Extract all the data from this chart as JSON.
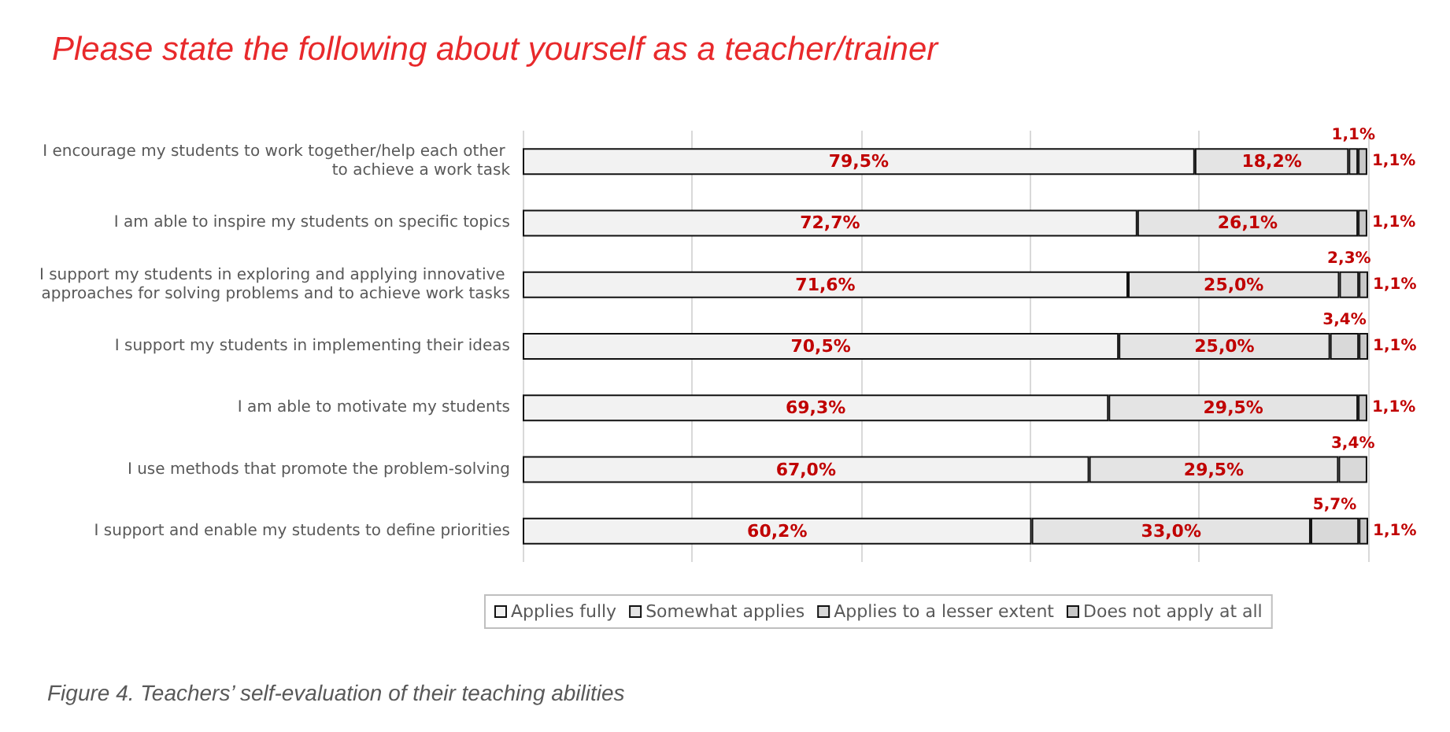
{
  "chart_data": {
    "type": "bar",
    "orientation": "horizontal",
    "stacked": true,
    "title": "Please state the following about yourself as a teacher/trainer",
    "categories": [
      "I encourage my students to work together/help each other to achieve a work task",
      "I am able to inspire my students on specific topics",
      "I support my students in exploring and applying innovative approaches for solving problems and to achieve work tasks",
      "I support my students in implementing their ideas",
      "I am able to motivate my students",
      "I use methods that promote the problem-solving",
      "I support and enable my students to define priorities"
    ],
    "series": [
      {
        "name": "Applies fully",
        "color": "#f2f2f2",
        "values": [
          79.5,
          72.7,
          71.6,
          70.5,
          69.3,
          67.0,
          60.2
        ],
        "value_labels": [
          "79,5%",
          "72,7%",
          "71,6%",
          "70,5%",
          "69,3%",
          "67,0%",
          "60,2%"
        ]
      },
      {
        "name": "Somewhat applies",
        "color": "#e4e4e4",
        "values": [
          18.2,
          26.1,
          25.0,
          25.0,
          29.5,
          29.5,
          33.0
        ],
        "value_labels": [
          "18,2%",
          "26,1%",
          "25,0%",
          "25,0%",
          "29,5%",
          "29,5%",
          "33,0%"
        ]
      },
      {
        "name": "Applies to a lesser extent",
        "color": "#d9d9d9",
        "values": [
          1.1,
          null,
          2.3,
          3.4,
          null,
          3.4,
          5.7
        ],
        "value_labels": [
          "1,1%",
          null,
          "2,3%",
          "3,4%",
          null,
          "3,4%",
          "5,7%"
        ]
      },
      {
        "name": "Does not apply at all",
        "color": "#c8c8c8",
        "values": [
          1.1,
          1.1,
          1.1,
          1.1,
          1.1,
          null,
          1.1
        ],
        "value_labels": [
          "1,1%",
          "1,1%",
          "1,1%",
          "1,1%",
          "1,1%",
          null,
          "1,1%"
        ]
      }
    ],
    "xlim": [
      0,
      100
    ],
    "xticks": [
      {
        "value": 0,
        "label": null
      },
      {
        "value": 20,
        "label": null
      },
      {
        "value": 40,
        "label": null
      },
      {
        "value": 60,
        "label": null
      },
      {
        "value": 80,
        "label": null
      },
      {
        "value": 100,
        "label": null
      }
    ],
    "tick_labels": "y",
    "grid": "x",
    "legend": "bottom",
    "annotations": [
      "Figure 4. Teachers’ self-evaluation of their teaching abilities"
    ]
  }
}
